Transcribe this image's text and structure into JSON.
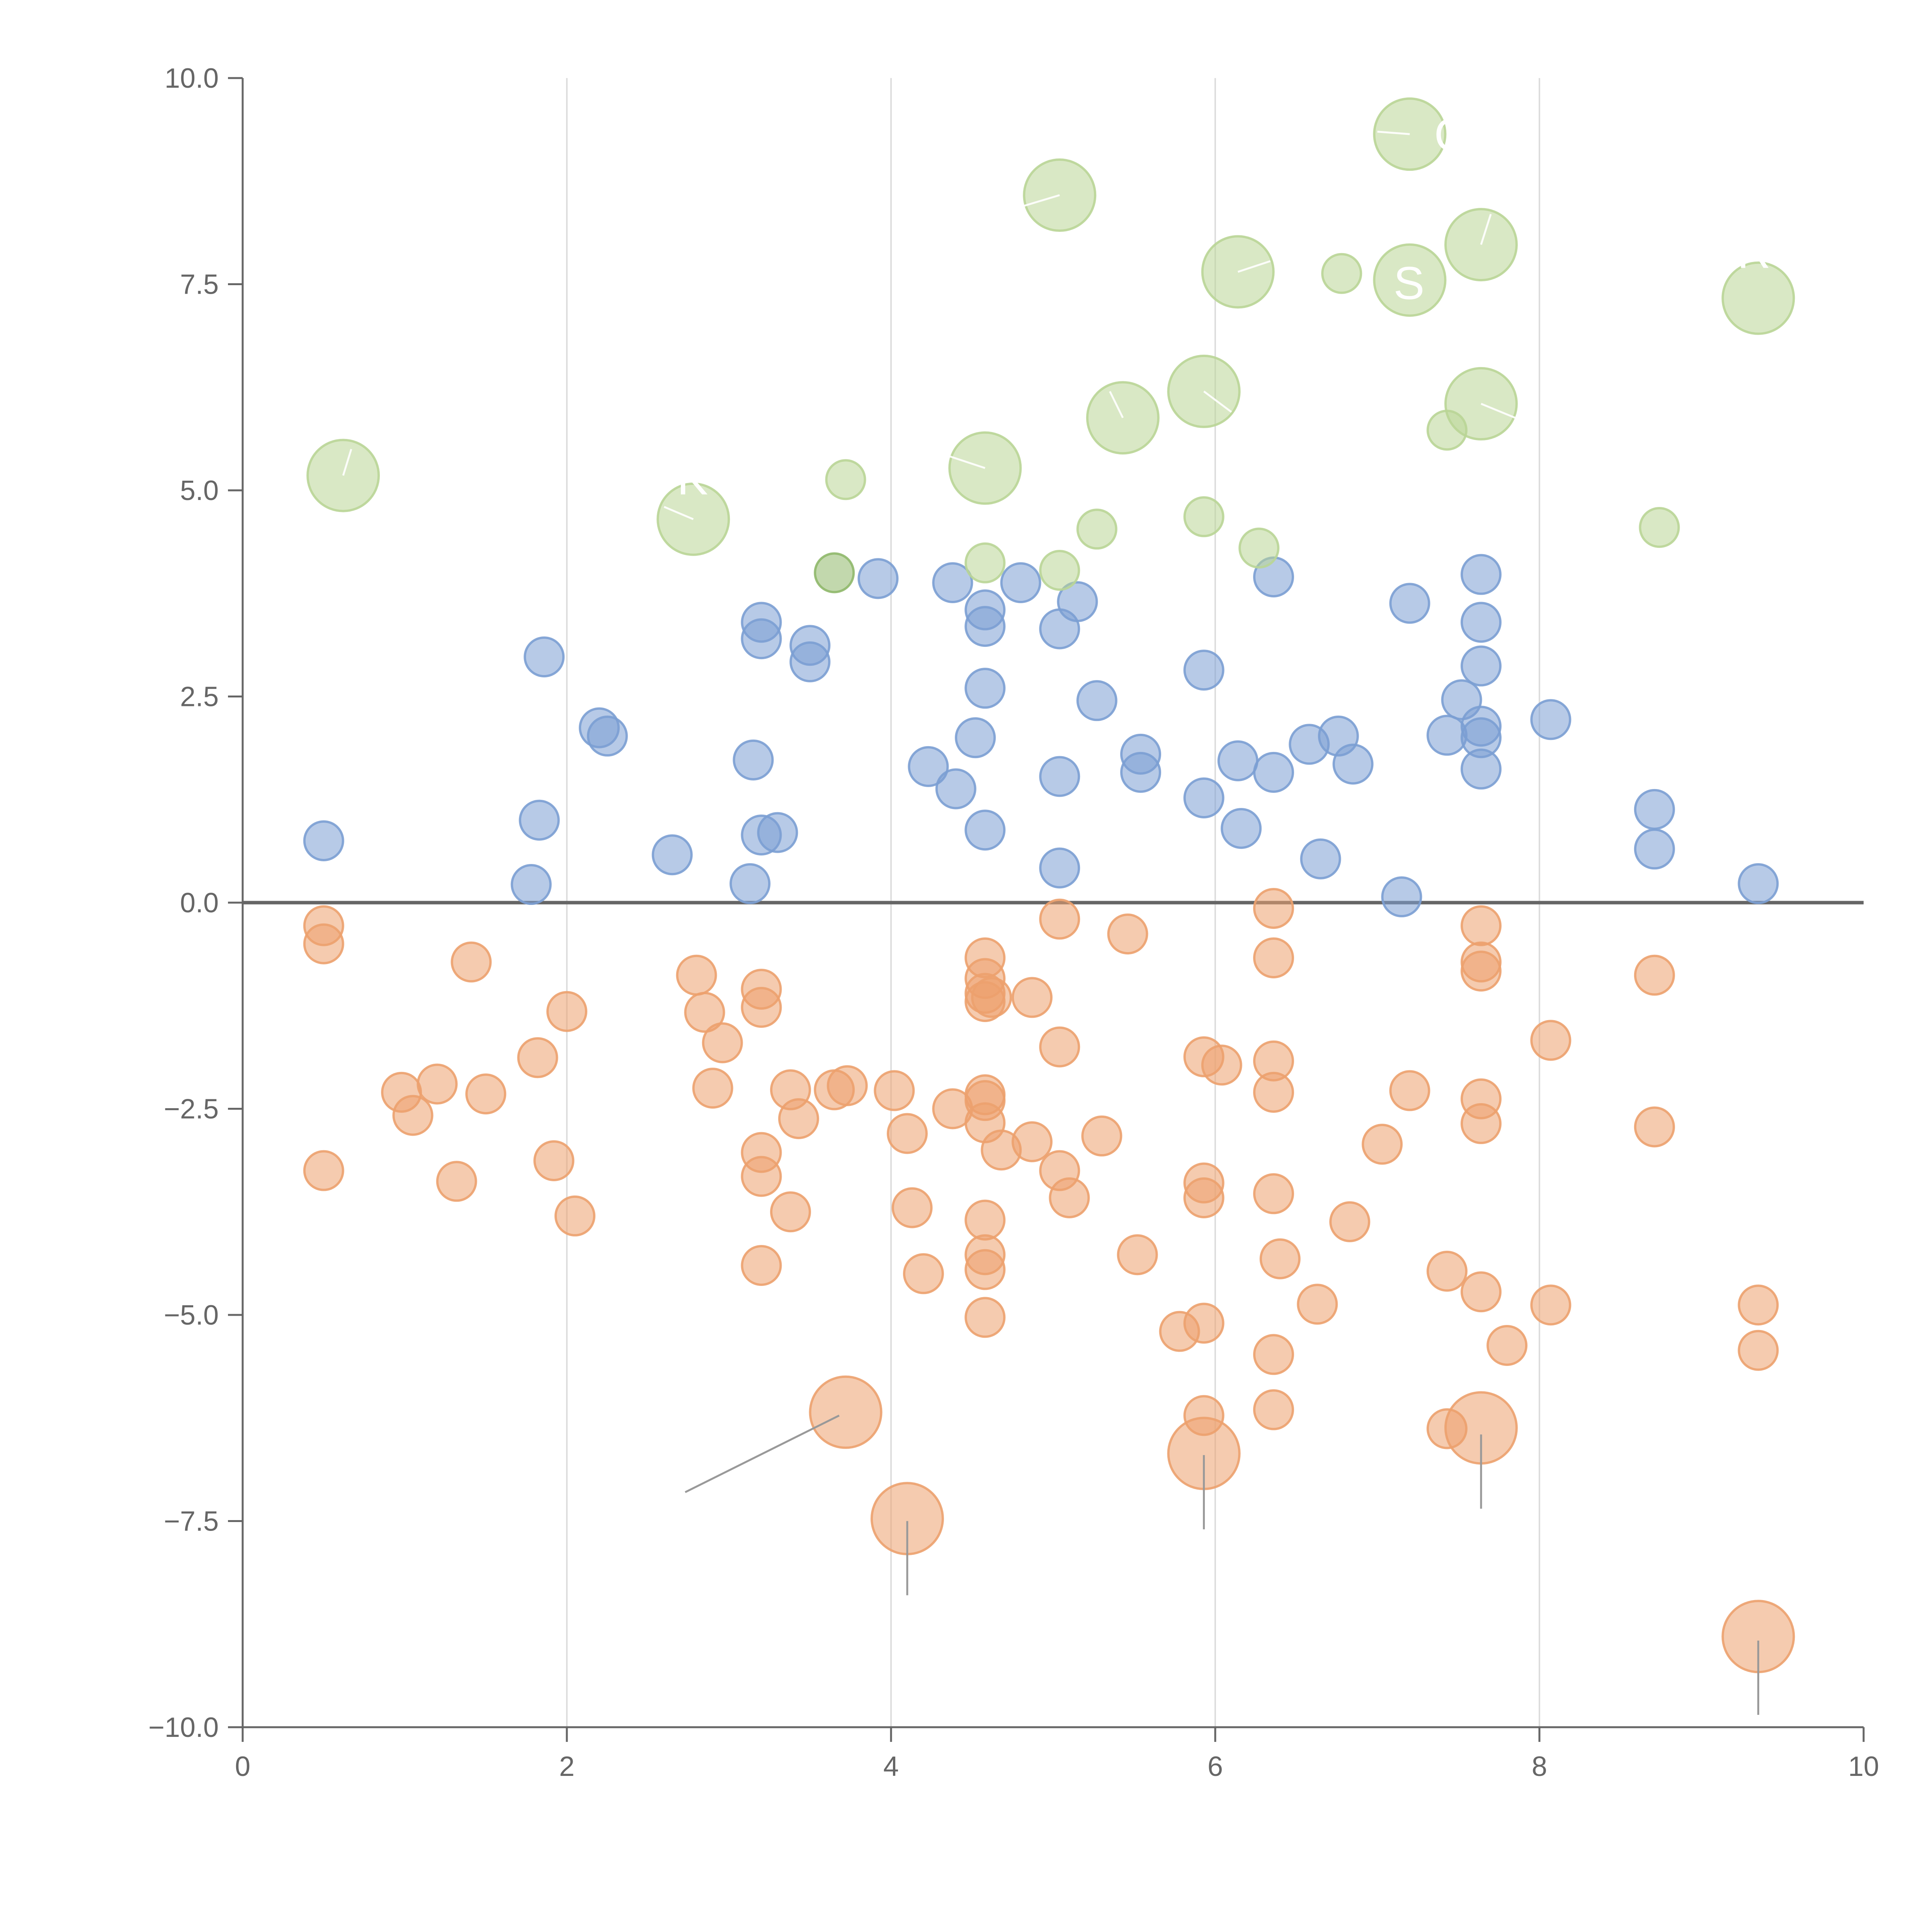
{
  "chart_data": {
    "type": "scatter",
    "title": "",
    "xlabel": "",
    "ylabel": "",
    "xlim": [
      0,
      10
    ],
    "ylim": [
      -10,
      10
    ],
    "x_ticks": [
      0,
      2,
      4,
      6,
      8,
      10
    ],
    "x_tick_labels": [
      "0",
      "2",
      "4",
      "6",
      "8",
      "10"
    ],
    "y_ticks": [
      -10,
      -7.5,
      -5,
      -2.5,
      0,
      2.5,
      5,
      7.5,
      10
    ],
    "y_tick_labels": [
      "−10.0",
      "−7.5",
      "−5.0",
      "−2.5",
      "0.0",
      "2.5",
      "5.0",
      "7.5",
      "10.0"
    ],
    "vertical_gridlines": [
      2,
      4,
      6,
      8
    ],
    "zero_line": true,
    "colors": {
      "blue": "#7b9fd3",
      "orange": "#eca16e",
      "green": "#b9d596",
      "green_dark": "#8fb86a",
      "axis": "#666666",
      "grid": "#dddddd",
      "leader": "#999999"
    },
    "series": [
      {
        "color": "blue",
        "points": [
          {
            "x": 0.5,
            "y": 0.75
          },
          {
            "x": 1.78,
            "y": 0.22
          },
          {
            "x": 1.83,
            "y": 1.0
          },
          {
            "x": 1.86,
            "y": 2.98
          },
          {
            "x": 2.2,
            "y": 2.12
          },
          {
            "x": 2.25,
            "y": 2.02
          },
          {
            "x": 2.65,
            "y": 0.58
          },
          {
            "x": 3.13,
            "y": 0.23
          },
          {
            "x": 3.15,
            "y": 1.73
          },
          {
            "x": 3.2,
            "y": 3.4
          },
          {
            "x": 3.2,
            "y": 3.2
          },
          {
            "x": 3.2,
            "y": 0.82
          },
          {
            "x": 3.3,
            "y": 0.85
          },
          {
            "x": 3.5,
            "y": 3.12
          },
          {
            "x": 3.5,
            "y": 2.92
          },
          {
            "x": 3.92,
            "y": 3.93
          },
          {
            "x": 4.23,
            "y": 1.65
          },
          {
            "x": 4.38,
            "y": 3.88
          },
          {
            "x": 4.4,
            "y": 1.38
          },
          {
            "x": 4.52,
            "y": 2.0
          },
          {
            "x": 4.58,
            "y": 3.55
          },
          {
            "x": 4.58,
            "y": 3.35
          },
          {
            "x": 4.58,
            "y": 2.6
          },
          {
            "x": 4.58,
            "y": 0.88
          },
          {
            "x": 4.8,
            "y": 3.88
          },
          {
            "x": 5.04,
            "y": 3.32
          },
          {
            "x": 5.04,
            "y": 1.53
          },
          {
            "x": 5.04,
            "y": 0.42
          },
          {
            "x": 5.15,
            "y": 3.65
          },
          {
            "x": 5.27,
            "y": 2.45
          },
          {
            "x": 5.54,
            "y": 1.8
          },
          {
            "x": 5.54,
            "y": 1.58
          },
          {
            "x": 5.93,
            "y": 2.82
          },
          {
            "x": 5.93,
            "y": 1.27
          },
          {
            "x": 6.14,
            "y": 1.72
          },
          {
            "x": 6.16,
            "y": 0.9
          },
          {
            "x": 6.36,
            "y": 3.95
          },
          {
            "x": 6.36,
            "y": 1.58
          },
          {
            "x": 6.58,
            "y": 1.92
          },
          {
            "x": 6.65,
            "y": 0.53
          },
          {
            "x": 6.76,
            "y": 2.02
          },
          {
            "x": 6.85,
            "y": 1.68
          },
          {
            "x": 7.15,
            "y": 0.07
          },
          {
            "x": 7.2,
            "y": 3.63
          },
          {
            "x": 7.43,
            "y": 2.03
          },
          {
            "x": 7.52,
            "y": 2.46
          },
          {
            "x": 7.64,
            "y": 3.98
          },
          {
            "x": 7.64,
            "y": 3.4
          },
          {
            "x": 7.64,
            "y": 2.87
          },
          {
            "x": 7.64,
            "y": 2.14
          },
          {
            "x": 7.64,
            "y": 2.0
          },
          {
            "x": 7.64,
            "y": 1.62
          },
          {
            "x": 8.07,
            "y": 2.22
          },
          {
            "x": 8.71,
            "y": 1.13
          },
          {
            "x": 8.71,
            "y": 0.65
          },
          {
            "x": 9.35,
            "y": 0.23
          }
        ]
      },
      {
        "color": "orange",
        "points": [
          {
            "x": 0.5,
            "y": -0.28
          },
          {
            "x": 0.5,
            "y": -0.5
          },
          {
            "x": 0.5,
            "y": -3.25
          },
          {
            "x": 0.98,
            "y": -2.3
          },
          {
            "x": 1.05,
            "y": -2.58
          },
          {
            "x": 1.2,
            "y": -2.2
          },
          {
            "x": 1.32,
            "y": -3.38
          },
          {
            "x": 1.41,
            "y": -0.72
          },
          {
            "x": 1.5,
            "y": -2.32
          },
          {
            "x": 1.82,
            "y": -1.88
          },
          {
            "x": 1.92,
            "y": -3.13
          },
          {
            "x": 2.0,
            "y": -1.32
          },
          {
            "x": 2.05,
            "y": -3.8
          },
          {
            "x": 2.8,
            "y": -0.88
          },
          {
            "x": 2.85,
            "y": -1.33
          },
          {
            "x": 2.9,
            "y": -2.25
          },
          {
            "x": 2.96,
            "y": -1.7
          },
          {
            "x": 3.2,
            "y": -1.05
          },
          {
            "x": 3.2,
            "y": -1.27
          },
          {
            "x": 3.2,
            "y": -3.03
          },
          {
            "x": 3.2,
            "y": -3.32
          },
          {
            "x": 3.2,
            "y": -4.4
          },
          {
            "x": 3.38,
            "y": -2.27
          },
          {
            "x": 3.38,
            "y": -3.75
          },
          {
            "x": 3.43,
            "y": -2.62
          },
          {
            "x": 3.65,
            "y": -2.27
          },
          {
            "x": 3.73,
            "y": -2.22
          },
          {
            "x": 4.02,
            "y": -2.28
          },
          {
            "x": 4.1,
            "y": -2.8
          },
          {
            "x": 4.13,
            "y": -3.7
          },
          {
            "x": 4.2,
            "y": -4.5
          },
          {
            "x": 4.38,
            "y": -2.5
          },
          {
            "x": 4.58,
            "y": -0.67
          },
          {
            "x": 4.58,
            "y": -0.92
          },
          {
            "x": 4.58,
            "y": -1.1
          },
          {
            "x": 4.58,
            "y": -1.2
          },
          {
            "x": 4.62,
            "y": -1.15
          },
          {
            "x": 4.58,
            "y": -2.33
          },
          {
            "x": 4.58,
            "y": -2.4
          },
          {
            "x": 4.58,
            "y": -2.67
          },
          {
            "x": 4.68,
            "y": -3.0
          },
          {
            "x": 4.58,
            "y": -3.85
          },
          {
            "x": 4.58,
            "y": -4.27
          },
          {
            "x": 4.58,
            "y": -4.45
          },
          {
            "x": 4.58,
            "y": -5.03
          },
          {
            "x": 4.87,
            "y": -1.15
          },
          {
            "x": 4.87,
            "y": -2.9
          },
          {
            "x": 5.04,
            "y": -0.2
          },
          {
            "x": 5.04,
            "y": -1.75
          },
          {
            "x": 5.04,
            "y": -3.25
          },
          {
            "x": 5.1,
            "y": -3.58
          },
          {
            "x": 5.3,
            "y": -2.83
          },
          {
            "x": 5.46,
            "y": -0.38
          },
          {
            "x": 5.52,
            "y": -4.27
          },
          {
            "x": 5.78,
            "y": -5.2
          },
          {
            "x": 5.93,
            "y": -1.87
          },
          {
            "x": 5.93,
            "y": -3.4
          },
          {
            "x": 5.93,
            "y": -3.58
          },
          {
            "x": 5.93,
            "y": -5.1
          },
          {
            "x": 5.93,
            "y": -6.22
          },
          {
            "x": 6.04,
            "y": -1.97
          },
          {
            "x": 6.36,
            "y": -0.07
          },
          {
            "x": 6.36,
            "y": -0.67
          },
          {
            "x": 6.36,
            "y": -1.92
          },
          {
            "x": 6.36,
            "y": -2.3
          },
          {
            "x": 6.36,
            "y": -3.53
          },
          {
            "x": 6.4,
            "y": -4.32
          },
          {
            "x": 6.36,
            "y": -5.48
          },
          {
            "x": 6.36,
            "y": -6.15
          },
          {
            "x": 6.63,
            "y": -4.87
          },
          {
            "x": 6.83,
            "y": -3.87
          },
          {
            "x": 7.03,
            "y": -2.93
          },
          {
            "x": 7.2,
            "y": -2.28
          },
          {
            "x": 7.43,
            "y": -4.47
          },
          {
            "x": 7.43,
            "y": -6.38
          },
          {
            "x": 7.64,
            "y": -0.28
          },
          {
            "x": 7.64,
            "y": -0.72
          },
          {
            "x": 7.64,
            "y": -0.83
          },
          {
            "x": 7.64,
            "y": -2.38
          },
          {
            "x": 7.64,
            "y": -2.68
          },
          {
            "x": 7.64,
            "y": -4.72
          },
          {
            "x": 7.8,
            "y": -5.37
          },
          {
            "x": 8.07,
            "y": -1.67
          },
          {
            "x": 8.07,
            "y": -4.88
          },
          {
            "x": 8.71,
            "y": -0.88
          },
          {
            "x": 8.71,
            "y": -2.72
          },
          {
            "x": 9.35,
            "y": -4.88
          },
          {
            "x": 9.35,
            "y": -5.43
          },
          {
            "x": 3.72,
            "y": -6.18,
            "size": "large"
          },
          {
            "x": 4.1,
            "y": -7.47,
            "size": "large"
          },
          {
            "x": 5.93,
            "y": -6.68,
            "size": "large"
          },
          {
            "x": 7.64,
            "y": -6.37,
            "size": "large"
          },
          {
            "x": 9.35,
            "y": -8.9,
            "size": "large"
          }
        ]
      },
      {
        "color": "green",
        "points": [
          {
            "x": 0.62,
            "y": 5.18,
            "size": "large"
          },
          {
            "x": 2.78,
            "y": 4.65,
            "size": "large"
          },
          {
            "x": 3.72,
            "y": 5.13
          },
          {
            "x": 3.65,
            "y": 4.0,
            "color": "green_dark"
          },
          {
            "x": 4.58,
            "y": 4.12
          },
          {
            "x": 4.58,
            "y": 5.27,
            "size": "large"
          },
          {
            "x": 5.04,
            "y": 4.03
          },
          {
            "x": 5.04,
            "y": 8.58,
            "size": "large"
          },
          {
            "x": 5.27,
            "y": 4.53
          },
          {
            "x": 5.43,
            "y": 5.88,
            "size": "large"
          },
          {
            "x": 5.93,
            "y": 6.2,
            "size": "large"
          },
          {
            "x": 5.93,
            "y": 4.68
          },
          {
            "x": 6.14,
            "y": 7.65,
            "size": "large"
          },
          {
            "x": 6.27,
            "y": 4.3
          },
          {
            "x": 6.78,
            "y": 7.63
          },
          {
            "x": 7.2,
            "y": 9.32,
            "size": "large"
          },
          {
            "x": 7.2,
            "y": 7.55,
            "size": "large"
          },
          {
            "x": 7.64,
            "y": 7.98,
            "size": "large"
          },
          {
            "x": 7.64,
            "y": 6.05,
            "size": "large"
          },
          {
            "x": 7.43,
            "y": 5.73
          },
          {
            "x": 8.74,
            "y": 4.55
          },
          {
            "x": 9.35,
            "y": 7.33,
            "size": "large"
          }
        ]
      }
    ],
    "annotations": [
      {
        "text": "C",
        "x": 7.35,
        "y": 9.12
      },
      {
        "text": "S",
        "x": 7.1,
        "y": 7.32
      },
      {
        "text": "R",
        "x": 9.22,
        "y": 7.7
      },
      {
        "text": "K",
        "x": 2.68,
        "y": 4.95
      }
    ],
    "leader_lines": [
      {
        "color": "white",
        "x1": 7.0,
        "y1": 9.35,
        "x2": 7.2,
        "y2": 9.32
      },
      {
        "color": "white",
        "x1": 4.82,
        "y1": 8.45,
        "x2": 5.04,
        "y2": 8.58
      },
      {
        "color": "white",
        "x1": 6.14,
        "y1": 7.65,
        "x2": 6.34,
        "y2": 7.78
      },
      {
        "color": "white",
        "x1": 7.64,
        "y1": 7.98,
        "x2": 7.7,
        "y2": 8.35
      },
      {
        "color": "white",
        "x1": 5.93,
        "y1": 6.2,
        "x2": 6.1,
        "y2": 5.95
      },
      {
        "color": "white",
        "x1": 5.43,
        "y1": 5.88,
        "x2": 5.35,
        "y2": 6.2
      },
      {
        "color": "white",
        "x1": 7.64,
        "y1": 6.05,
        "x2": 7.85,
        "y2": 5.88
      },
      {
        "color": "white",
        "x1": 4.58,
        "y1": 5.27,
        "x2": 4.35,
        "y2": 5.42
      },
      {
        "color": "white",
        "x1": 0.62,
        "y1": 5.18,
        "x2": 0.67,
        "y2": 5.5
      },
      {
        "color": "white",
        "x1": 2.78,
        "y1": 4.65,
        "x2": 2.6,
        "y2": 4.8
      },
      {
        "color": "gray",
        "x1": 3.68,
        "y1": -6.22,
        "x2": 2.73,
        "y2": -7.15
      },
      {
        "color": "gray",
        "x1": 4.1,
        "y1": -7.5,
        "x2": 4.1,
        "y2": -8.4
      },
      {
        "color": "gray",
        "x1": 5.93,
        "y1": -6.7,
        "x2": 5.93,
        "y2": -7.6
      },
      {
        "color": "gray",
        "x1": 7.64,
        "y1": -6.45,
        "x2": 7.64,
        "y2": -7.35
      },
      {
        "color": "gray",
        "x1": 9.35,
        "y1": -8.95,
        "x2": 9.35,
        "y2": -9.85
      }
    ]
  }
}
